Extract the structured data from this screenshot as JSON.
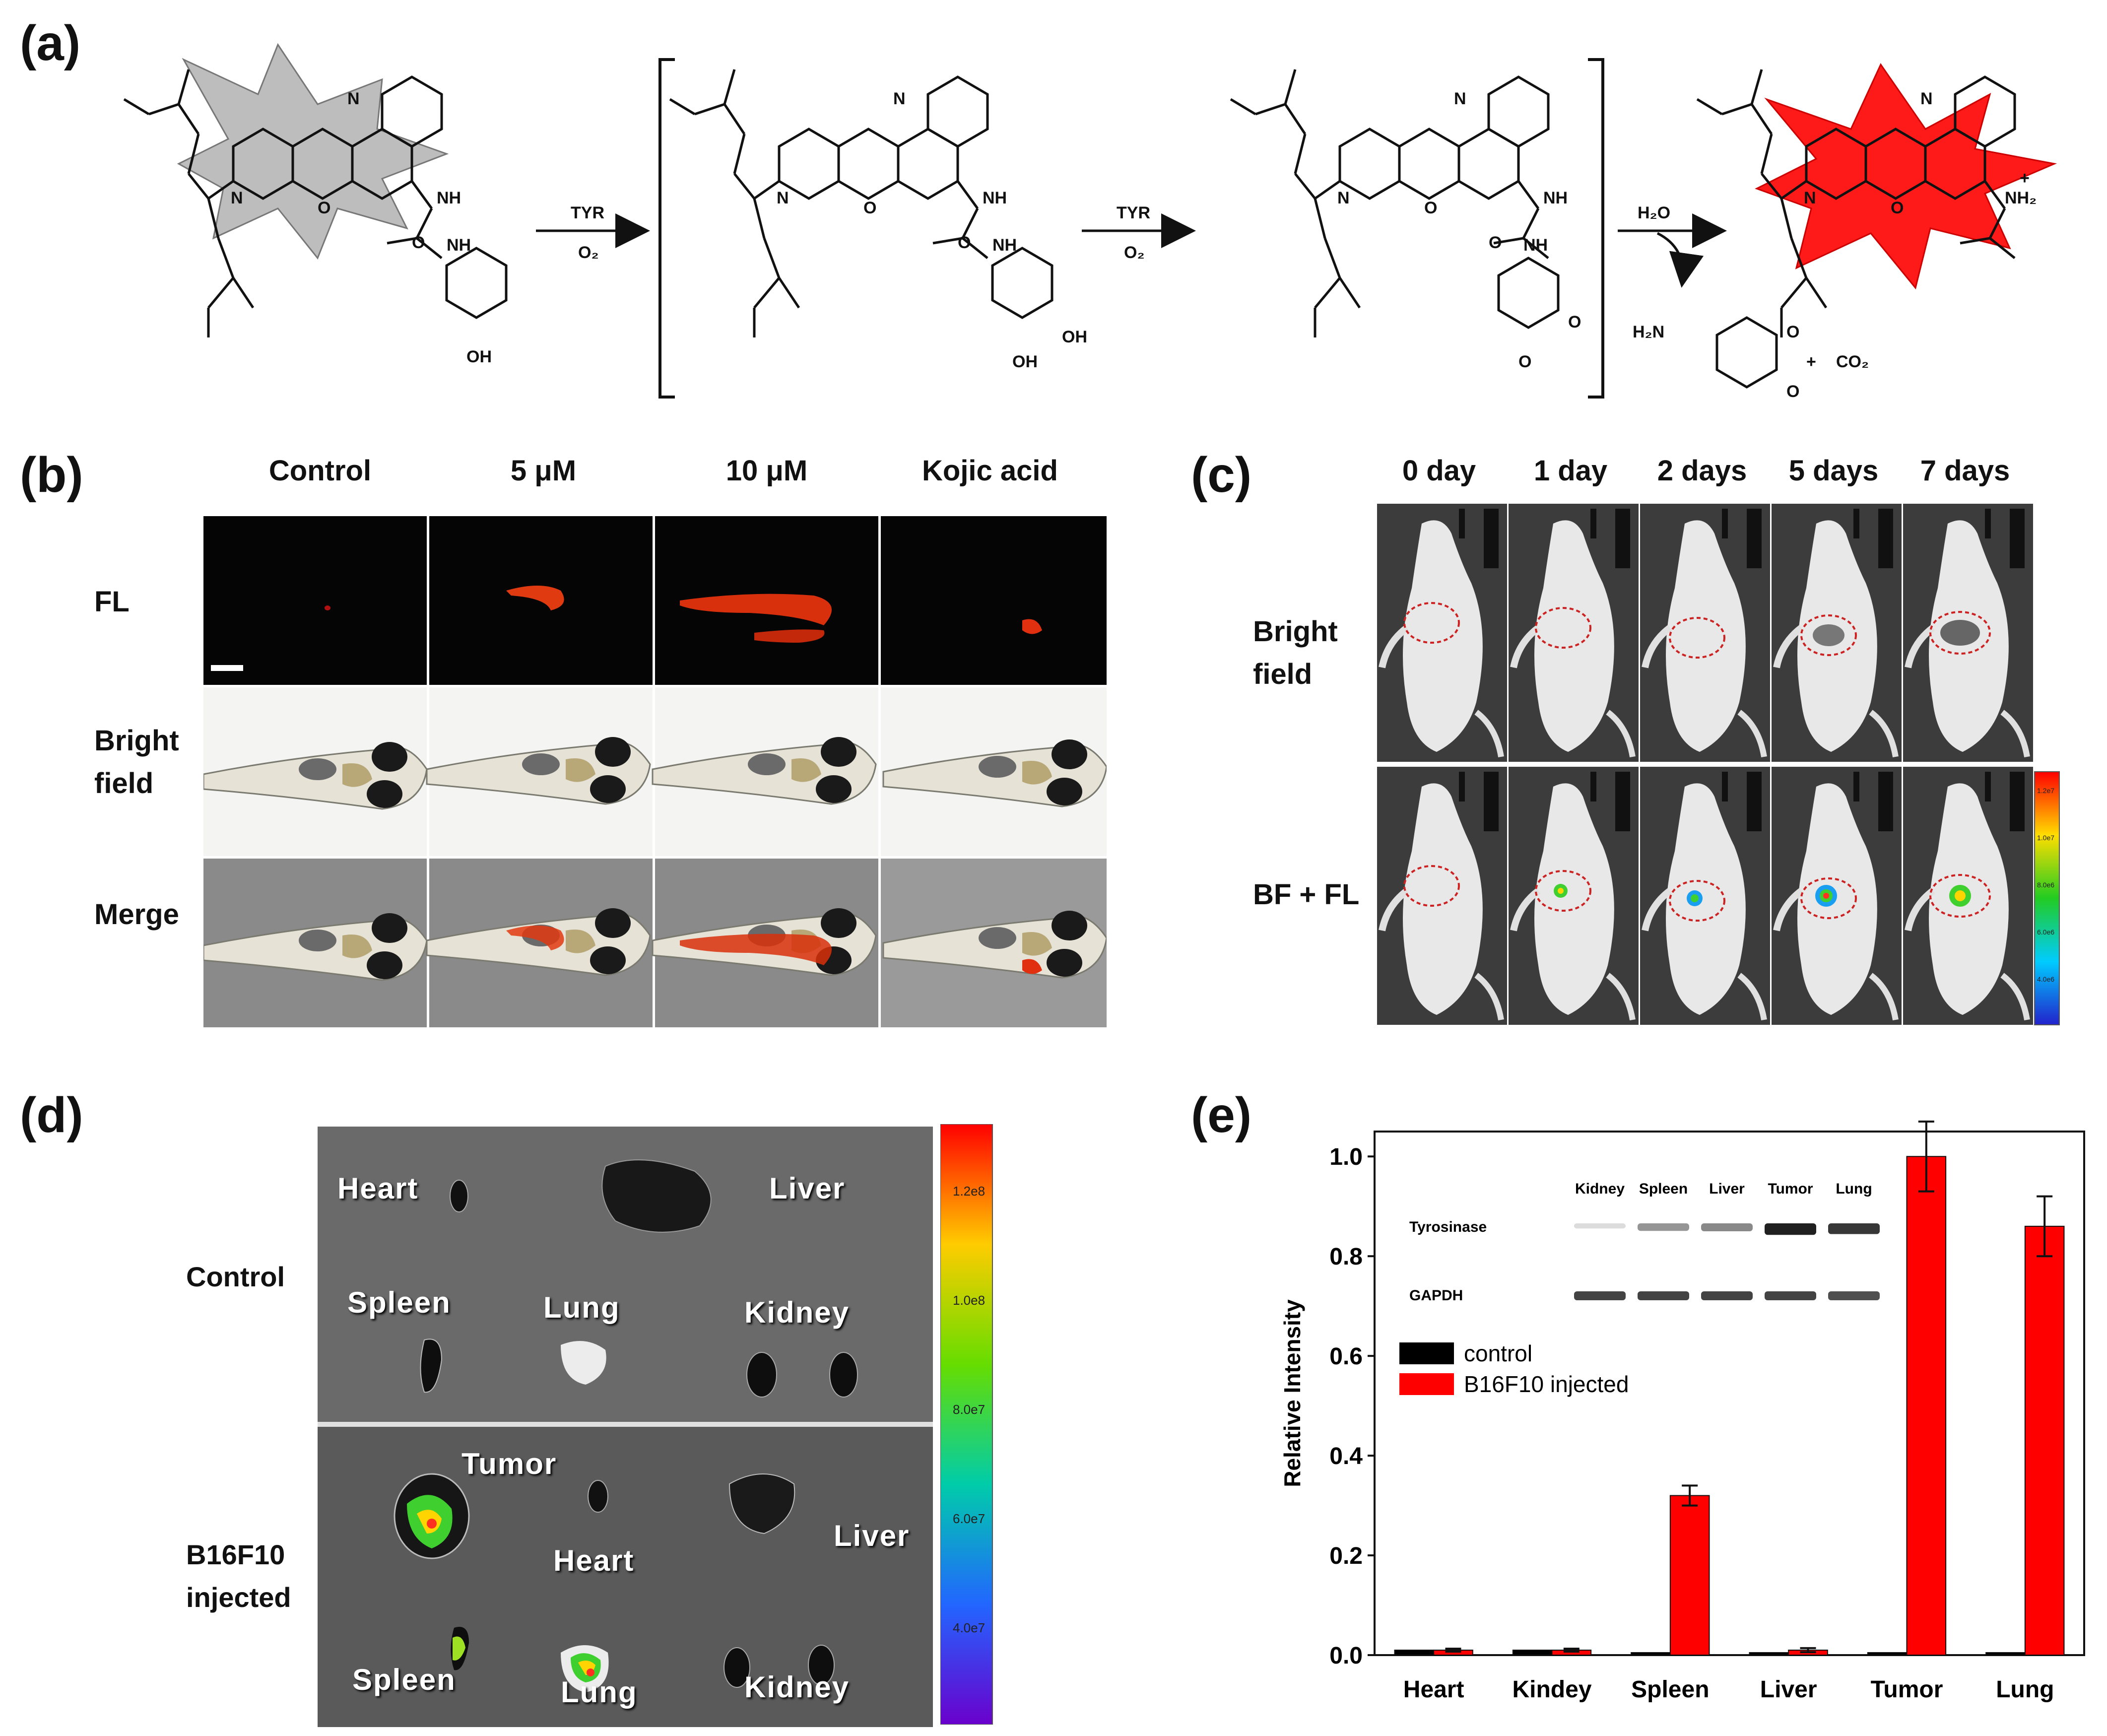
{
  "panel_labels": {
    "a": "(a)",
    "b": "(b)",
    "c": "(c)",
    "d": "(d)",
    "e": "(e)"
  },
  "scheme": {
    "arrow1_top": "TYR",
    "arrow1_bottom": "O₂",
    "arrow2_top": "TYR",
    "arrow2_bottom": "O₂",
    "arrow3_top": "H₂O",
    "labels": {
      "n": "N",
      "o": "O",
      "nh": "NH",
      "oh": "OH",
      "nh2": "NH₂",
      "h2n": "H₂N",
      "plus": "+",
      "co2": "CO₂",
      "o_atom": "O"
    }
  },
  "panel_b": {
    "columns": [
      "Control",
      "5 μM",
      "10 μM",
      "Kojic acid"
    ],
    "rows": [
      "FL",
      "Bright\nfield",
      "Merge"
    ]
  },
  "panel_c": {
    "columns": [
      "0 day",
      "1 day",
      "2 days",
      "5 days",
      "7 days"
    ],
    "rows": [
      "Bright\nfield",
      "BF + FL"
    ],
    "colorbar_ticks": [
      "1.2e7",
      "1.0e7",
      "8.0e6",
      "6.0e6",
      "4.0e6"
    ]
  },
  "panel_d": {
    "rows": [
      "Control",
      "B16F10\ninjected"
    ],
    "control_organs": [
      "Heart",
      "Liver",
      "Spleen",
      "Lung",
      "Kidney"
    ],
    "injected_organs": [
      "Tumor",
      "Heart",
      "Liver",
      "Spleen",
      "Lung",
      "Kidney"
    ],
    "colorbar_ticks": [
      "1.2e8",
      "1.0e8",
      "8.0e7",
      "6.0e7",
      "4.0e7"
    ]
  },
  "chart_data": {
    "type": "bar",
    "categories": [
      "Heart",
      "Kindey",
      "Spleen",
      "Liver",
      "Tumor",
      "Lung"
    ],
    "series": [
      {
        "name": "control",
        "values": [
          0.01,
          0.01,
          0.005,
          0.005,
          0.005,
          0.005
        ],
        "errors": [
          0,
          0,
          0,
          0,
          0,
          0
        ],
        "color": "#000000"
      },
      {
        "name": "B16F10 injected",
        "values": [
          0.01,
          0.01,
          0.32,
          0.01,
          1.0,
          0.86
        ],
        "errors": [
          0.003,
          0.003,
          0.02,
          0.004,
          0.07,
          0.06
        ],
        "color": "#ff0000"
      }
    ],
    "ylabel": "Relative Intensity",
    "ylim": [
      0,
      1.05
    ],
    "yticks": [
      "0.0",
      "0.2",
      "0.4",
      "0.6",
      "0.8",
      "1.0"
    ],
    "legend_placement": "upper-left",
    "inset_blot": {
      "lanes": [
        "Kidney",
        "Spleen",
        "Liver",
        "Tumor",
        "Lung"
      ],
      "rows": [
        "Tyrosinase",
        "GAPDH"
      ],
      "tyrosinase_intensity": [
        0.15,
        0.45,
        0.5,
        0.95,
        0.85
      ],
      "gapdh_intensity": [
        0.8,
        0.8,
        0.8,
        0.8,
        0.75
      ]
    }
  }
}
